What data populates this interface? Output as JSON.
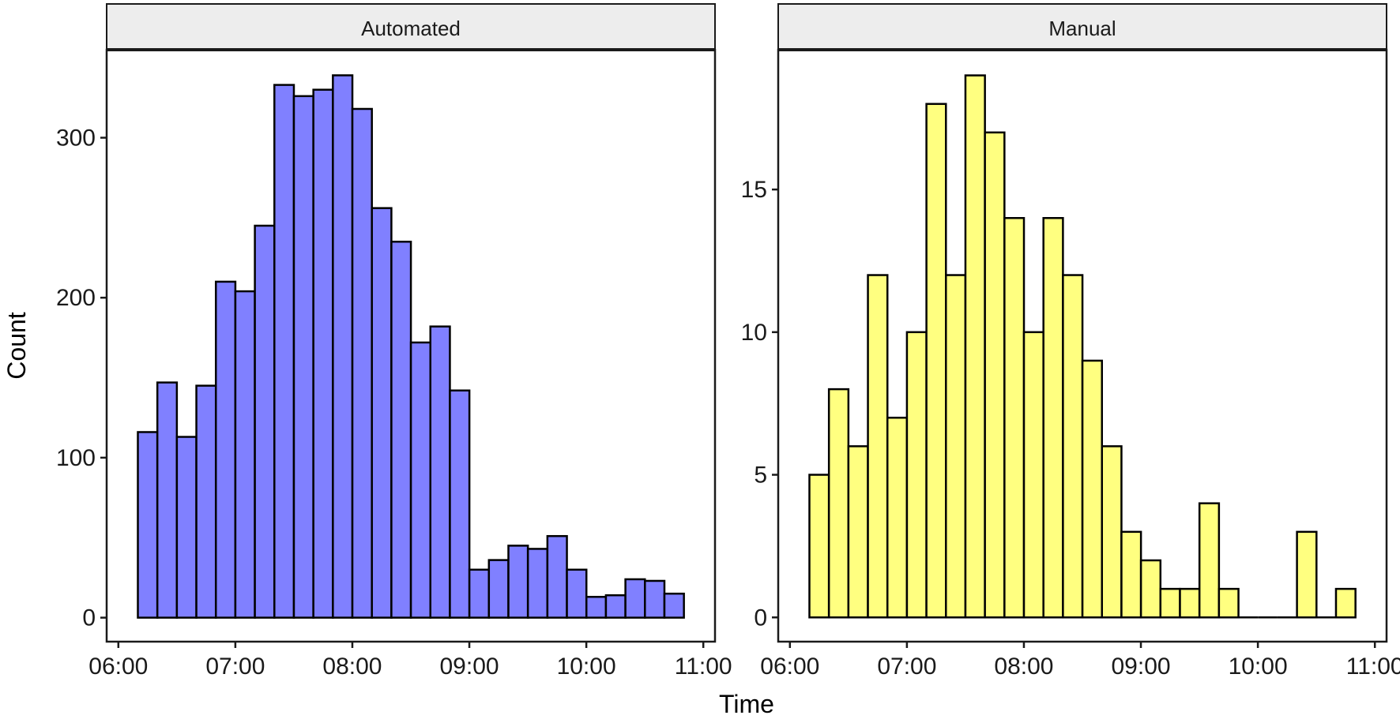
{
  "chart_data": {
    "type": "bar",
    "subtype": "faceted-histogram",
    "xlabel": "Time",
    "ylabel": "Count",
    "grid": false,
    "legend": "none",
    "x_ticks": [
      "06:00",
      "07:00",
      "08:00",
      "09:00",
      "10:00",
      "11:00"
    ],
    "x_tick_values": [
      6,
      7,
      8,
      9,
      10,
      11
    ],
    "xlim": [
      5.9,
      11.1
    ],
    "bin_start": 6.1667,
    "bin_width": 0.1667,
    "panels": [
      {
        "title": "Automated",
        "fill": "#8080ff",
        "ylim": [
          -15,
          355
        ],
        "y_ticks": [
          0,
          100,
          200,
          300
        ],
        "values": [
          116,
          147,
          113,
          145,
          210,
          204,
          245,
          333,
          326,
          330,
          339,
          318,
          256,
          235,
          172,
          182,
          142,
          30,
          36,
          45,
          43,
          51,
          30,
          13,
          14,
          24,
          23,
          15
        ]
      },
      {
        "title": "Manual",
        "fill": "#ffff80",
        "ylim": [
          -0.85,
          19.9
        ],
        "y_ticks": [
          0,
          5,
          10,
          15
        ],
        "values": [
          5,
          8,
          6,
          12,
          7,
          10,
          18,
          12,
          19,
          17,
          14,
          10,
          14,
          12,
          9,
          6,
          3,
          2,
          1,
          1,
          4,
          1,
          0,
          0,
          0,
          3,
          0,
          1
        ]
      }
    ]
  }
}
